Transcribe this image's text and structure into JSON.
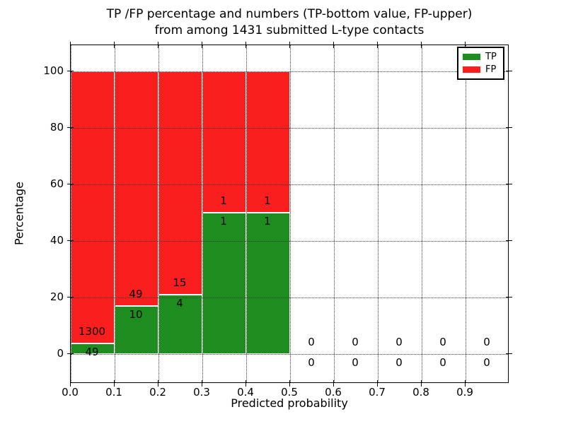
{
  "figure": {
    "title_line1": "TP /FP percentage and numbers (TP-bottom value, FP-upper)",
    "title_line2": "from among 1431 submitted L-type contacts"
  },
  "chart_data": {
    "type": "bar",
    "stacked": true,
    "title": "TP /FP percentage and numbers (TP-bottom value, FP-upper)\nfrom among 1431 submitted L-type contacts",
    "xlabel": "Predicted probability",
    "ylabel": "Percentage",
    "xlim": [
      0.0,
      1.0
    ],
    "ylim": [
      -10.5,
      109.25
    ],
    "xticks": [
      "0.0",
      "0.1",
      "0.2",
      "0.3",
      "0.4",
      "0.5",
      "0.6",
      "0.7",
      "0.8",
      "0.9"
    ],
    "xtick_values": [
      0.0,
      0.1,
      0.2,
      0.3,
      0.4,
      0.5,
      0.6,
      0.7,
      0.8,
      0.9
    ],
    "yticks": [
      "0",
      "20",
      "40",
      "60",
      "80",
      "100"
    ],
    "ytick_values": [
      0,
      20,
      40,
      60,
      80,
      100
    ],
    "grid": true,
    "grid_style": "dotted",
    "total_contacts": 1431,
    "legend": {
      "position": "upper right",
      "entries": [
        {
          "label": "TP",
          "color": "#1e8c1e"
        },
        {
          "label": "FP",
          "color": "#fa1f1f"
        }
      ]
    },
    "colors": {
      "tp": "#1e8c1e",
      "fp": "#fa1f1f"
    },
    "bins": [
      {
        "x_start": 0.0,
        "x_end": 0.1,
        "tp_count": 49,
        "fp_count": 1300,
        "tp_pct": 3.632,
        "fp_pct": 96.368
      },
      {
        "x_start": 0.1,
        "x_end": 0.2,
        "tp_count": 10,
        "fp_count": 49,
        "tp_pct": 16.949,
        "fp_pct": 83.051
      },
      {
        "x_start": 0.2,
        "x_end": 0.3,
        "tp_count": 4,
        "fp_count": 15,
        "tp_pct": 21.053,
        "fp_pct": 78.947
      },
      {
        "x_start": 0.3,
        "x_end": 0.4,
        "tp_count": 1,
        "fp_count": 1,
        "tp_pct": 50,
        "fp_pct": 50
      },
      {
        "x_start": 0.4,
        "x_end": 0.5,
        "tp_count": 1,
        "fp_count": 1,
        "tp_pct": 50,
        "fp_pct": 50
      },
      {
        "x_start": 0.5,
        "x_end": 0.6,
        "tp_count": 0,
        "fp_count": 0,
        "tp_pct": 0,
        "fp_pct": 0
      },
      {
        "x_start": 0.6,
        "x_end": 0.7,
        "tp_count": 0,
        "fp_count": 0,
        "tp_pct": 0,
        "fp_pct": 0
      },
      {
        "x_start": 0.7,
        "x_end": 0.8,
        "tp_count": 0,
        "fp_count": 0,
        "tp_pct": 0,
        "fp_pct": 0
      },
      {
        "x_start": 0.8,
        "x_end": 0.9,
        "tp_count": 0,
        "fp_count": 0,
        "tp_pct": 0,
        "fp_pct": 0
      },
      {
        "x_start": 0.9,
        "x_end": 1.0,
        "tp_count": 0,
        "fp_count": 0,
        "tp_pct": 0,
        "fp_pct": 0
      }
    ]
  }
}
